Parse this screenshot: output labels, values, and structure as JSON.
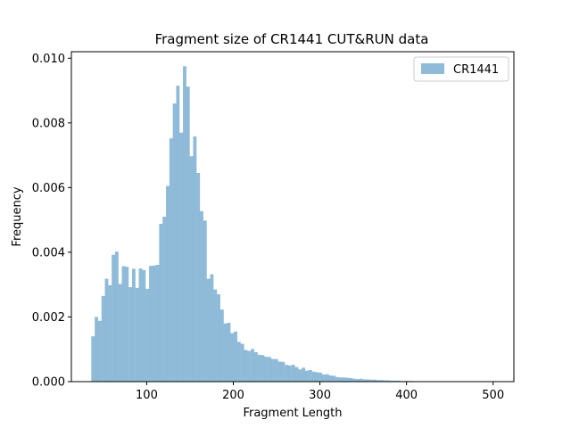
{
  "chart_data": {
    "type": "bar",
    "title": "Fragment size of CR1441 CUT&RUN data",
    "xlabel": "Fragment Length",
    "ylabel": "Frequency",
    "xlim": [
      13,
      524
    ],
    "ylim": [
      0,
      0.0102
    ],
    "xticks": [
      100,
      200,
      300,
      400,
      500
    ],
    "yticks": [
      0.0,
      0.002,
      0.004,
      0.006,
      0.008,
      0.01
    ],
    "ytick_labels": [
      "0.000",
      "0.002",
      "0.004",
      "0.006",
      "0.008",
      "0.010"
    ],
    "legend_position": "top-right",
    "grid": false,
    "series": [
      {
        "name": "CR1441",
        "color": "#1f77b4",
        "opacity": 0.5,
        "bin_start": 36,
        "bin_width": 3.92,
        "values": [
          0.0014,
          0.002,
          0.00188,
          0.00265,
          0.00318,
          0.00298,
          0.00392,
          0.00402,
          0.00302,
          0.00357,
          0.00355,
          0.00292,
          0.00349,
          0.0029,
          0.0035,
          0.00345,
          0.00287,
          0.00358,
          0.00359,
          0.00361,
          0.00488,
          0.0051,
          0.00605,
          0.00752,
          0.0086,
          0.00915,
          0.0077,
          0.00975,
          0.00912,
          0.00697,
          0.00758,
          0.00645,
          0.00527,
          0.00498,
          0.00318,
          0.00332,
          0.00285,
          0.0027,
          0.00223,
          0.0018,
          0.00182,
          0.0015,
          0.00155,
          0.00123,
          0.00117,
          0.00098,
          0.00095,
          0.00101,
          0.00091,
          0.00083,
          0.00082,
          0.00077,
          0.00076,
          0.0007,
          0.0007,
          0.00062,
          0.00061,
          0.00052,
          0.0005,
          0.00052,
          0.00045,
          0.00038,
          0.00043,
          0.00034,
          0.00036,
          0.00031,
          0.00029,
          0.00028,
          0.00022,
          0.00023,
          0.00019,
          0.00018,
          0.00014,
          0.00013,
          0.00013,
          0.00012,
          0.00011,
          9e-05,
          8e-05,
          9e-05,
          7e-05,
          7e-05,
          6e-05,
          6e-05,
          5e-05,
          5e-05,
          4e-05,
          4e-05,
          3e-05,
          3e-05,
          3e-05,
          2e-05,
          2e-05,
          2e-05,
          2e-05,
          1e-05,
          1e-05,
          1e-05,
          1e-05,
          1e-05,
          1e-05,
          1e-05,
          1e-05,
          1e-05,
          1e-05,
          1e-05,
          1e-05,
          1e-05,
          1e-05,
          1e-05,
          1e-05,
          1e-05,
          1e-05,
          1e-05,
          1e-05
        ]
      }
    ]
  }
}
